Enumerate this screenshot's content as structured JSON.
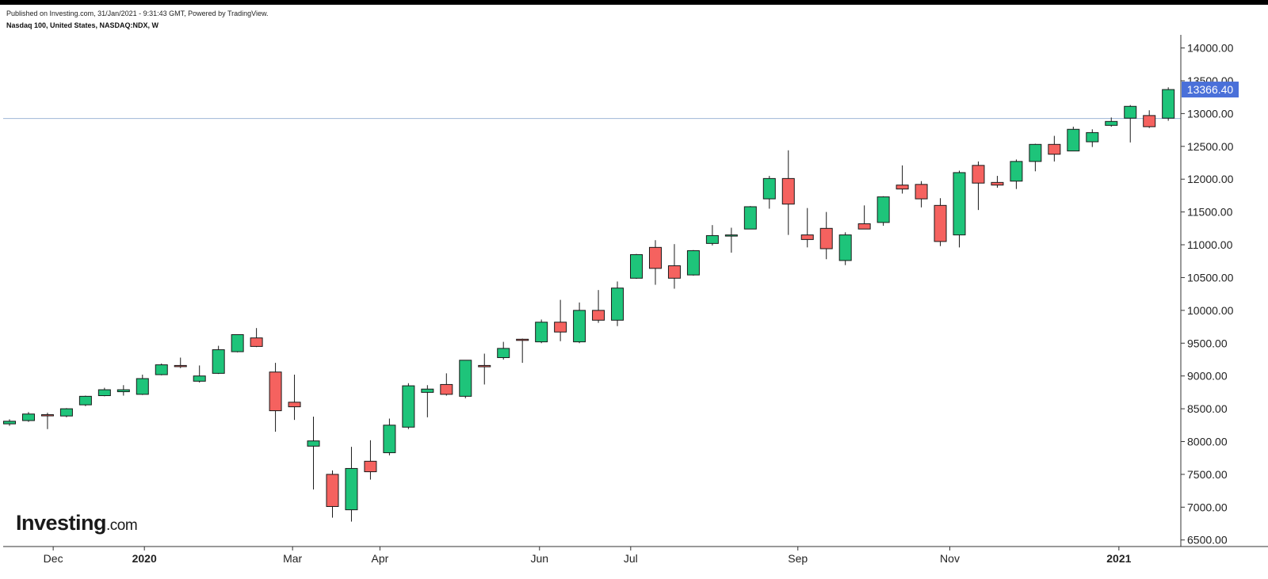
{
  "header": {
    "published": "Published on Investing.com, 31/Jan/2021 - 9:31:43 GMT, Powered by TradingView.",
    "symbol": "Nasdaq 100, United States, NASDAQ:NDX, W"
  },
  "logo": {
    "word": "Investing",
    "suffix": ".com"
  },
  "colors": {
    "up": "#1ec47a",
    "down": "#f5625f",
    "last_badge": "#4a70d9",
    "ref_line": "#9fb6d6"
  },
  "chart_data": {
    "type": "candlestick",
    "title": "",
    "xlabel": "",
    "ylabel": "",
    "ylim": [
      6400,
      14200
    ],
    "yticks": [
      6500,
      7000,
      7500,
      8000,
      8500,
      9000,
      9500,
      10000,
      10500,
      11000,
      11500,
      12000,
      12500,
      13000,
      13500,
      14000
    ],
    "ytick_labels": [
      "6500.00",
      "7000.00",
      "7500.00",
      "8000.00",
      "8500.00",
      "9000.00",
      "9500.00",
      "10000.00",
      "10500.00",
      "11000.00",
      "11500.00",
      "12000.00",
      "12500.00",
      "13000.00",
      "13500.00",
      "14000.00"
    ],
    "xtick_labels": [
      {
        "label": "Dec",
        "index": 2.3,
        "bold": false
      },
      {
        "label": "2020",
        "index": 7.1,
        "bold": true
      },
      {
        "label": "Mar",
        "index": 14.9,
        "bold": false
      },
      {
        "label": "Apr",
        "index": 19.5,
        "bold": false
      },
      {
        "label": "Jun",
        "index": 27.9,
        "bold": false
      },
      {
        "label": "Jul",
        "index": 32.7,
        "bold": false
      },
      {
        "label": "Sep",
        "index": 41.5,
        "bold": false
      },
      {
        "label": "Nov",
        "index": 49.5,
        "bold": false
      },
      {
        "label": "2021",
        "index": 58.4,
        "bold": true
      }
    ],
    "last_price": {
      "value": 13366.4,
      "label": "13366.40"
    },
    "reference_line": 12925,
    "grid": false,
    "series": [
      {
        "o": 8270,
        "h": 8340,
        "l": 8240,
        "c": 8310
      },
      {
        "o": 8320,
        "h": 8450,
        "l": 8300,
        "c": 8420
      },
      {
        "o": 8410,
        "h": 8440,
        "l": 8190,
        "c": 8400
      },
      {
        "o": 8390,
        "h": 8510,
        "l": 8370,
        "c": 8500
      },
      {
        "o": 8560,
        "h": 8700,
        "l": 8540,
        "c": 8690
      },
      {
        "o": 8700,
        "h": 8820,
        "l": 8690,
        "c": 8790
      },
      {
        "o": 8760,
        "h": 8860,
        "l": 8700,
        "c": 8790
      },
      {
        "o": 8720,
        "h": 9020,
        "l": 8710,
        "c": 8960
      },
      {
        "o": 9020,
        "h": 9190,
        "l": 9010,
        "c": 9170
      },
      {
        "o": 9160,
        "h": 9280,
        "l": 9120,
        "c": 9150
      },
      {
        "o": 8920,
        "h": 9160,
        "l": 8900,
        "c": 9000
      },
      {
        "o": 9040,
        "h": 9460,
        "l": 9030,
        "c": 9400
      },
      {
        "o": 9370,
        "h": 9630,
        "l": 9360,
        "c": 9630
      },
      {
        "o": 9580,
        "h": 9730,
        "l": 9440,
        "c": 9450
      },
      {
        "o": 9060,
        "h": 9200,
        "l": 8150,
        "c": 8470
      },
      {
        "o": 8600,
        "h": 9020,
        "l": 8330,
        "c": 8530
      },
      {
        "o": 7930,
        "h": 8380,
        "l": 7270,
        "c": 8010
      },
      {
        "o": 7500,
        "h": 7560,
        "l": 6840,
        "c": 7010
      },
      {
        "o": 6960,
        "h": 7920,
        "l": 6780,
        "c": 7590
      },
      {
        "o": 7700,
        "h": 8020,
        "l": 7420,
        "c": 7540
      },
      {
        "o": 7830,
        "h": 8350,
        "l": 7790,
        "c": 8250
      },
      {
        "o": 8220,
        "h": 8890,
        "l": 8190,
        "c": 8850
      },
      {
        "o": 8750,
        "h": 8860,
        "l": 8370,
        "c": 8800
      },
      {
        "o": 8870,
        "h": 9040,
        "l": 8700,
        "c": 8720
      },
      {
        "o": 8690,
        "h": 9240,
        "l": 8660,
        "c": 9240
      },
      {
        "o": 9160,
        "h": 9340,
        "l": 8870,
        "c": 9140
      },
      {
        "o": 9280,
        "h": 9520,
        "l": 9250,
        "c": 9420
      },
      {
        "o": 9560,
        "h": 9570,
        "l": 9200,
        "c": 9550
      },
      {
        "o": 9520,
        "h": 9860,
        "l": 9500,
        "c": 9820
      },
      {
        "o": 9820,
        "h": 10160,
        "l": 9530,
        "c": 9670
      },
      {
        "o": 9520,
        "h": 10120,
        "l": 9500,
        "c": 10000
      },
      {
        "o": 10000,
        "h": 10310,
        "l": 9810,
        "c": 9850
      },
      {
        "o": 9850,
        "h": 10440,
        "l": 9760,
        "c": 10340
      },
      {
        "o": 10490,
        "h": 10860,
        "l": 10480,
        "c": 10850
      },
      {
        "o": 10960,
        "h": 11070,
        "l": 10390,
        "c": 10640
      },
      {
        "o": 10680,
        "h": 11010,
        "l": 10330,
        "c": 10490
      },
      {
        "o": 10540,
        "h": 10920,
        "l": 10530,
        "c": 10910
      },
      {
        "o": 11020,
        "h": 11300,
        "l": 10990,
        "c": 11140
      },
      {
        "o": 11140,
        "h": 11260,
        "l": 10880,
        "c": 11150
      },
      {
        "o": 11240,
        "h": 11590,
        "l": 11240,
        "c": 11580
      },
      {
        "o": 11700,
        "h": 12050,
        "l": 11550,
        "c": 12010
      },
      {
        "o": 12010,
        "h": 12440,
        "l": 11150,
        "c": 11620
      },
      {
        "o": 11150,
        "h": 11560,
        "l": 10960,
        "c": 11080
      },
      {
        "o": 11250,
        "h": 11500,
        "l": 10780,
        "c": 10940
      },
      {
        "o": 10760,
        "h": 11190,
        "l": 10690,
        "c": 11150
      },
      {
        "o": 11320,
        "h": 11600,
        "l": 11250,
        "c": 11240
      },
      {
        "o": 11340,
        "h": 11740,
        "l": 11290,
        "c": 11730
      },
      {
        "o": 11910,
        "h": 12210,
        "l": 11780,
        "c": 11850
      },
      {
        "o": 11920,
        "h": 11970,
        "l": 11570,
        "c": 11700
      },
      {
        "o": 11600,
        "h": 11710,
        "l": 10980,
        "c": 11050
      },
      {
        "o": 11150,
        "h": 12130,
        "l": 10960,
        "c": 12100
      },
      {
        "o": 12210,
        "h": 12270,
        "l": 11530,
        "c": 11940
      },
      {
        "o": 11950,
        "h": 12050,
        "l": 11870,
        "c": 11910
      },
      {
        "o": 11970,
        "h": 12300,
        "l": 11850,
        "c": 12270
      },
      {
        "o": 12270,
        "h": 12540,
        "l": 12120,
        "c": 12530
      },
      {
        "o": 12530,
        "h": 12660,
        "l": 12270,
        "c": 12380
      },
      {
        "o": 12430,
        "h": 12800,
        "l": 12430,
        "c": 12760
      },
      {
        "o": 12570,
        "h": 12760,
        "l": 12490,
        "c": 12710
      },
      {
        "o": 12820,
        "h": 12940,
        "l": 12800,
        "c": 12880
      },
      {
        "o": 12930,
        "h": 13130,
        "l": 12560,
        "c": 13110
      },
      {
        "o": 12970,
        "h": 13050,
        "l": 12780,
        "c": 12800
      },
      {
        "o": 12930,
        "h": 13400,
        "l": 12890,
        "c": 13366
      }
    ]
  }
}
